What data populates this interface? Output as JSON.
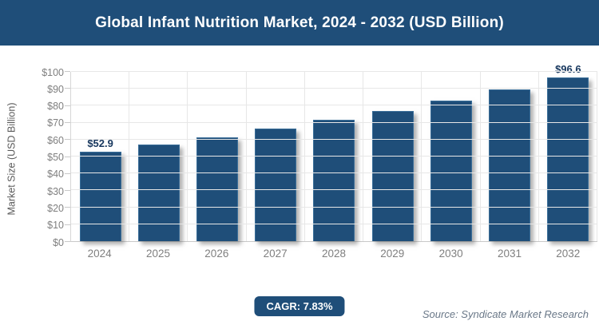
{
  "header": {
    "title": "Global Infant Nutrition Market, 2024 - 2032 (USD Billion)"
  },
  "chart_data": {
    "type": "bar",
    "title": "Global Infant Nutrition Market, 2024 - 2032 (USD Billion)",
    "categories": [
      "2024",
      "2025",
      "2026",
      "2027",
      "2028",
      "2029",
      "2030",
      "2031",
      "2032"
    ],
    "values": [
      52.9,
      57.0,
      61.5,
      66.3,
      71.5,
      77.1,
      83.2,
      89.7,
      96.6
    ],
    "bar_labels": [
      "$52.9",
      "",
      "",
      "",
      "",
      "",
      "",
      "",
      "$96.6"
    ],
    "xlabel": "",
    "ylabel": "Market Size (USD Billion)",
    "ylim": [
      0,
      100
    ],
    "ytick_step": 10,
    "ytick_labels": [
      "$0",
      "$10",
      "$20",
      "$30",
      "$40",
      "$50",
      "$60",
      "$70",
      "$80",
      "$90",
      "$100"
    ],
    "grid": true,
    "legend": false
  },
  "footer": {
    "cagr_label": "CAGR: 7.83%",
    "source": "Source: Syndicate Market Research"
  },
  "colors": {
    "banner_bg": "#1f4e79",
    "bar_fill": "#1f4e79",
    "bar_stroke": "#3a6e99",
    "badge_bg": "#1f4e79",
    "grid_line": "#e7e7e7",
    "tick_text": "#7f7f7f",
    "data_label_text": "#17375e",
    "source_text": "#6a7888"
  }
}
